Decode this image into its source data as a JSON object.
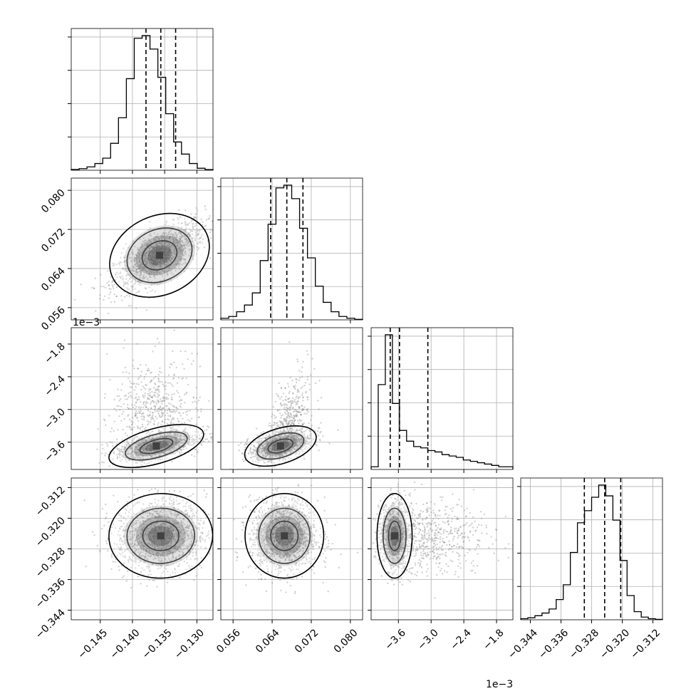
{
  "chart_data": {
    "type": "corner",
    "quantile_lines": "dashed",
    "scatter_color": "#7f7f7f",
    "line_color": "#000000",
    "grid": true,
    "parameters": [
      {
        "range": [
          -0.1495,
          -0.1275
        ],
        "ticks": [
          -0.145,
          -0.14,
          -0.135,
          -0.13
        ],
        "tick_labels": [
          "−0.145",
          "−0.140",
          "−0.135",
          "−0.130"
        ],
        "quantiles": [
          -0.1379,
          -0.1356,
          -0.1333
        ],
        "hist": [
          0.6,
          1.2,
          2.5,
          5,
          9,
          20,
          39,
          68,
          98,
          100,
          90,
          69,
          42,
          21,
          12,
          5,
          1.5,
          0.5
        ]
      },
      {
        "range": [
          0.0535,
          0.0825
        ],
        "ticks": [
          0.056,
          0.064,
          0.072,
          0.08
        ],
        "tick_labels": [
          "0.056",
          "0.064",
          "0.072",
          "0.080"
        ],
        "quantiles": [
          0.0637,
          0.067,
          0.0703
        ],
        "hist": [
          1.2,
          2.5,
          6,
          11,
          20,
          44,
          71,
          98,
          100,
          90,
          68,
          46,
          25,
          13,
          6,
          2.5,
          1.2,
          0.4
        ]
      },
      {
        "range": [
          -4.1,
          -1.5
        ],
        "ticks": [
          -3.6,
          -3.0,
          -2.4,
          -1.8
        ],
        "tick_labels": [
          "−3.6",
          "−3.0",
          "−2.4",
          "−1.8"
        ],
        "offset": "1e−3",
        "quantiles": [
          -3.75,
          -3.58,
          -3.06
        ],
        "hist": [
          2,
          63,
          100,
          49,
          29,
          21,
          17,
          16,
          14,
          13,
          11,
          10,
          9,
          7,
          6,
          5,
          4,
          3,
          2,
          2
        ]
      },
      {
        "range": [
          -0.3465,
          -0.3095
        ],
        "ticks": [
          -0.344,
          -0.336,
          -0.328,
          -0.32,
          -0.312
        ],
        "tick_labels": [
          "−0.344",
          "−0.336",
          "−0.328",
          "−0.320",
          "−0.312"
        ],
        "quantiles": [
          -0.3299,
          -0.3246,
          -0.3204
        ],
        "hist": [
          0.8,
          1.5,
          3,
          5,
          8,
          15,
          26,
          50,
          72,
          81,
          91,
          100,
          92,
          74,
          44,
          18,
          6,
          2,
          0.8,
          0.3
        ]
      }
    ],
    "pairs": [
      {
        "x": 0,
        "y": 1,
        "mode": [
          -0.1358,
          0.0667
        ],
        "sigma": [
          0.0035,
          0.0035
        ],
        "rho": 0.72,
        "tail": "none"
      },
      {
        "x": 0,
        "y": 2,
        "mode": [
          -0.1363,
          -3.67
        ],
        "sigma": [
          0.0033,
          0.14
        ],
        "rho": 0.45,
        "tail": "up"
      },
      {
        "x": 1,
        "y": 2,
        "mode": [
          0.0657,
          -3.67
        ],
        "sigma": [
          0.0033,
          0.14
        ],
        "rho": 0.5,
        "tail": "up-right"
      },
      {
        "x": 0,
        "y": 3,
        "mode": [
          -0.1356,
          -0.3246
        ],
        "sigma": [
          0.0035,
          0.0048
        ],
        "rho": 0.05,
        "tail": "none"
      },
      {
        "x": 1,
        "y": 3,
        "mode": [
          0.0665,
          -0.3246
        ],
        "sigma": [
          0.0035,
          0.0048
        ],
        "rho": 0.0,
        "tail": "none"
      },
      {
        "x": 2,
        "y": 3,
        "mode": [
          -3.67,
          -0.3246
        ],
        "sigma": [
          0.14,
          0.0048
        ],
        "rho": 0.0,
        "tail": "right"
      }
    ]
  }
}
